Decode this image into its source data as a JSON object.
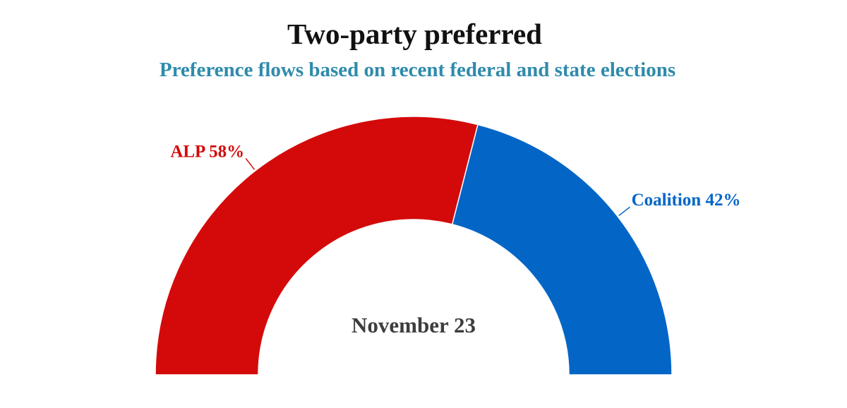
{
  "chart_data": {
    "type": "pie",
    "variant": "semi-donut",
    "title": "Two-party preferred",
    "subtitle": "Preference flows based on recent federal and state elections",
    "center_label": "November 23",
    "slices": [
      {
        "label": "ALP 58%",
        "value": 58,
        "color": "#d40a0a"
      },
      {
        "label": "Coalition 42%",
        "value": 42,
        "color": "#0366c6"
      }
    ],
    "subtitle_color": "#2f8bab"
  }
}
